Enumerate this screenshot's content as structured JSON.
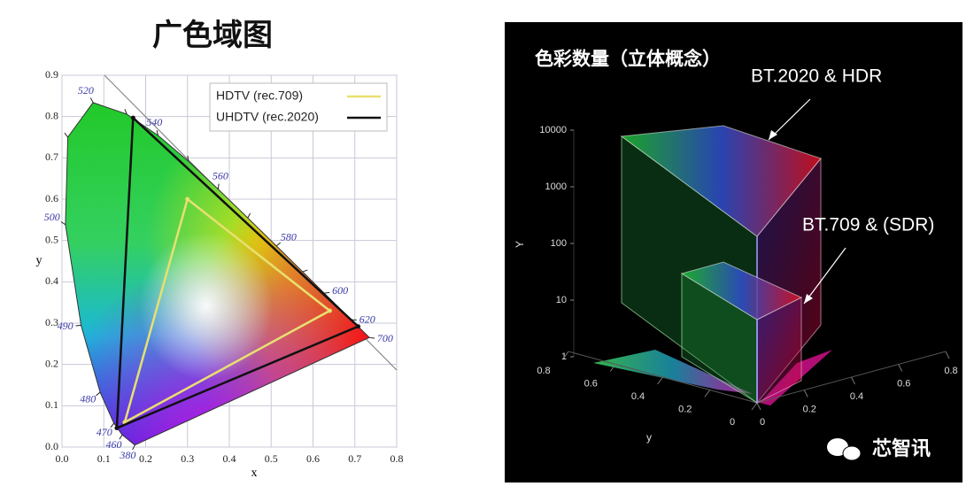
{
  "chart_data": [
    {
      "type": "chromaticity",
      "title": "广色域图",
      "xlabel": "x",
      "ylabel": "y",
      "xlim": [
        0,
        0.8
      ],
      "ylim": [
        0,
        0.9
      ],
      "xticks": [
        {
          "value": 0,
          "label": "0.0"
        },
        0.1,
        0.2,
        0.3,
        0.4,
        0.5,
        0.6,
        0.7,
        0.8
      ],
      "yticks": [
        {
          "value": 0,
          "label": "0.0"
        },
        0.1,
        0.2,
        0.3,
        0.4,
        0.5,
        0.6,
        0.7,
        0.8,
        0.9
      ],
      "grid": true,
      "legend": "upper right",
      "spectral_locus": {
        "x": [
          0.1741,
          0.144,
          0.1241,
          0.0913,
          0.0454,
          0.0082,
          0.0139,
          0.0743,
          0.1547,
          0.2296,
          0.3016,
          0.3731,
          0.4441,
          0.5125,
          0.5752,
          0.627,
          0.6915,
          0.7347
        ],
        "values": [
          0.005,
          0.0297,
          0.0578,
          0.1327,
          0.295,
          0.5384,
          0.7502,
          0.8338,
          0.8059,
          0.7543,
          0.6923,
          0.6245,
          0.5547,
          0.4866,
          0.4242,
          0.3725,
          0.3083,
          0.2653
        ],
        "labels": [
          "380",
          "460",
          "470",
          "480",
          "490",
          "500",
          null,
          "520",
          null,
          "540",
          null,
          "560",
          null,
          "580",
          null,
          "600",
          "620",
          "700"
        ]
      },
      "series": [
        {
          "name": "HDTV (rec.709)",
          "color": "#e8e070",
          "x": [
            0.64,
            0.3,
            0.15
          ],
          "values": [
            0.33,
            0.6,
            0.06
          ]
        },
        {
          "name": "UHDTV (rec.2020)",
          "color": "#111111",
          "x": [
            0.708,
            0.17,
            0.131
          ],
          "values": [
            0.292,
            0.797,
            0.046
          ]
        }
      ]
    },
    {
      "type": "volume",
      "title": "色彩数量（立体概念）",
      "ylabel": "Y",
      "zlabel": "y",
      "ylim": [
        1,
        10000
      ],
      "log_scale": true,
      "yticks": [
        1,
        10,
        100,
        1000,
        10000
      ],
      "xticks": [
        0,
        0.2,
        0.4,
        0.6,
        0.8
      ],
      "zticks": [
        0,
        0.2,
        0.4,
        0.6,
        0.8
      ],
      "series": [
        {
          "name": "BT.2020 & HDR",
          "peak": 10000
        },
        {
          "name": "BT.709 & (SDR)",
          "peak": 100
        }
      ]
    }
  ],
  "watermark": "芯智讯"
}
